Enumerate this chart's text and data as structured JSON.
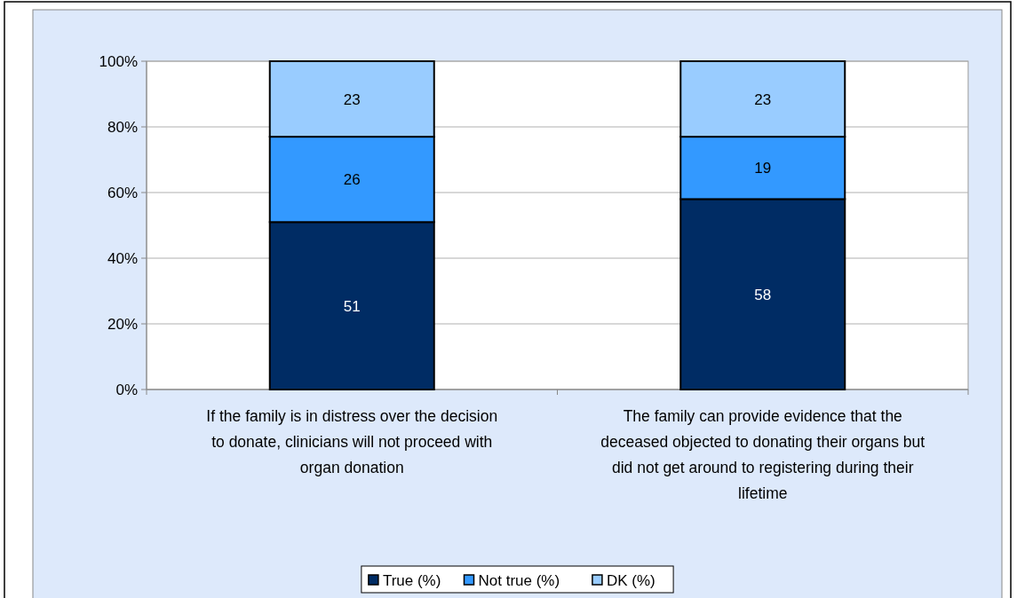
{
  "chart_data": {
    "type": "bar",
    "stacked": true,
    "categories": [
      "If the family is in distress over the decision to donate, clinicians will not proceed with organ donation",
      "The family can provide evidence that the deceased objected to donating their organs but did not get around to registering during their lifetime"
    ],
    "series": [
      {
        "name": "True (%)",
        "color": "#002c64",
        "values": [
          51,
          58
        ]
      },
      {
        "name": "Not true (%)",
        "color": "#3399ff",
        "values": [
          26,
          19
        ]
      },
      {
        "name": "DK (%)",
        "color": "#99ccff",
        "values": [
          23,
          23
        ]
      }
    ],
    "ylim": [
      0,
      100
    ],
    "yticks": [
      {
        "value": 0,
        "label": "0%"
      },
      {
        "value": 20,
        "label": "20%"
      },
      {
        "value": 40,
        "label": "40%"
      },
      {
        "value": 60,
        "label": "60%"
      },
      {
        "value": 80,
        "label": "80%"
      },
      {
        "value": 100,
        "label": "100%"
      }
    ],
    "grid": "y",
    "legend": "bottom",
    "data_labels": true
  }
}
